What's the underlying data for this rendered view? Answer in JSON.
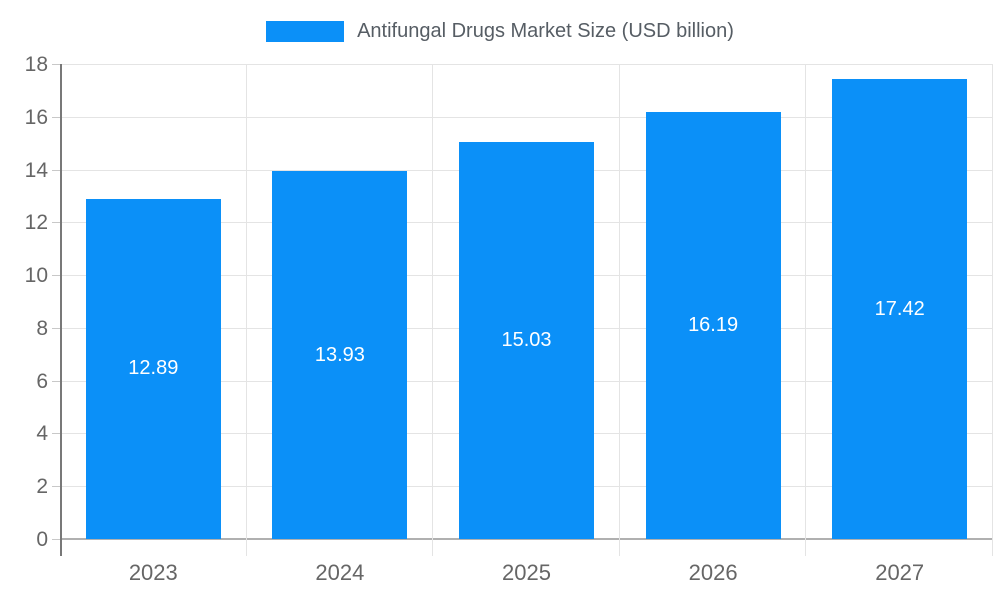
{
  "chart_data": {
    "type": "bar",
    "title": "Antifungal Drugs Market Size (USD billion)",
    "categories": [
      "2023",
      "2024",
      "2025",
      "2026",
      "2027"
    ],
    "values": [
      12.89,
      13.93,
      15.03,
      16.19,
      17.42
    ],
    "value_labels": [
      "12.89",
      "13.93",
      "15.03",
      "16.19",
      "17.42"
    ],
    "ylim": [
      0,
      18
    ],
    "yticks": [
      0,
      2,
      4,
      6,
      8,
      10,
      12,
      14,
      16,
      18
    ],
    "xlabel": "",
    "ylabel": "",
    "grid": true,
    "legend_position": "top"
  },
  "colors": {
    "bar": "#0b90f8",
    "legend_text": "#565d64",
    "axis_label": "#666666",
    "grid": "#e4e4e4",
    "axis_line": "#787878",
    "baseline": "#b0b0b0",
    "tick": "#c8c8c8",
    "value_label": "#ffffff"
  }
}
